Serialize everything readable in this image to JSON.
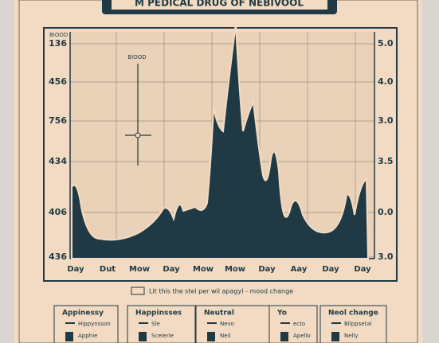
{
  "header": {
    "title": "M PEDICAL DRUG OF NEBIVOOL"
  },
  "chart": {
    "left_caption": "BIOOD",
    "left_labels": [
      "136",
      "456",
      "756",
      "434",
      "406",
      "436"
    ],
    "right_labels": [
      "5.0",
      "4.0",
      "3.0",
      "3.5",
      "0.0",
      "3.0"
    ],
    "x_labels": [
      "Day",
      "Dut",
      "Mow",
      "Day",
      "Mow",
      "Mow",
      "Day",
      "Aay",
      "Day",
      "Day"
    ],
    "annotation": "BIOOD",
    "caption": "Lit this the stel per wil apagyl - mood change"
  },
  "panels": [
    {
      "title": "Appinessy",
      "items": [
        "Hippynsson",
        "Apphie"
      ]
    },
    {
      "title": "Happinsses",
      "items": [
        "Sle",
        "Scelerie"
      ]
    },
    {
      "title": "Neutral",
      "items": [
        "Nevo",
        "Neil"
      ]
    },
    {
      "title": "Yo",
      "items": [
        "ecto",
        "Apello"
      ]
    },
    {
      "title": "Neol change",
      "items": [
        "Bilppsetal",
        "Nelly"
      ]
    }
  ]
}
